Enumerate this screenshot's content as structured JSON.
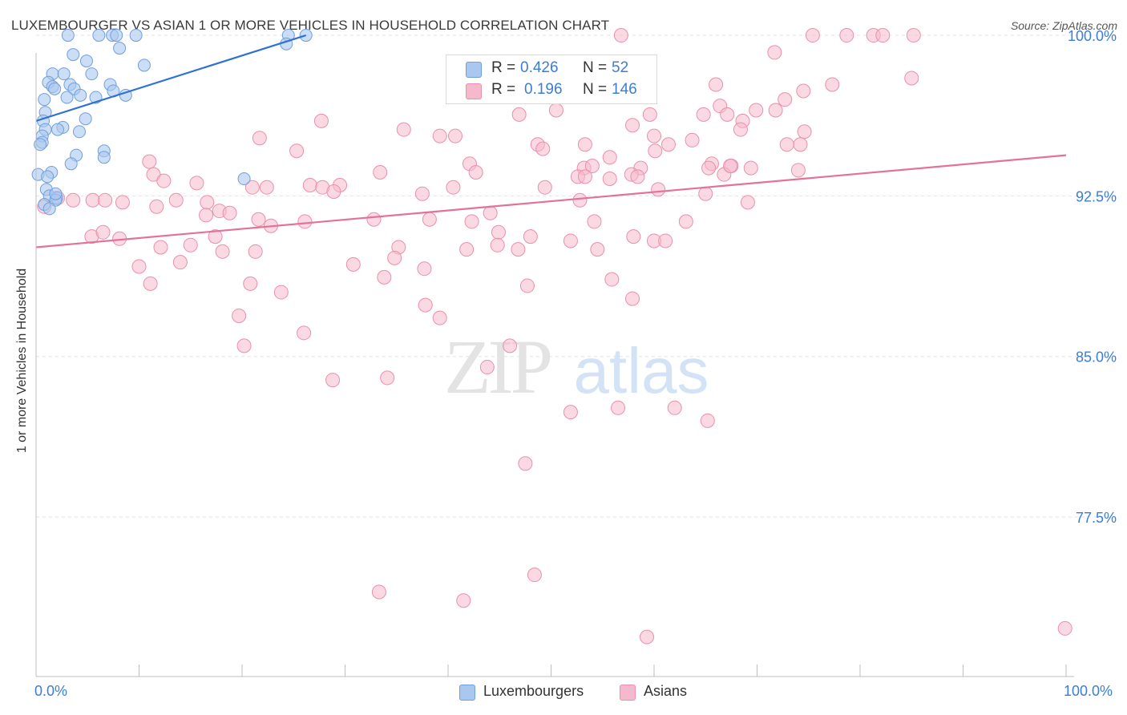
{
  "header": {
    "title": "LUXEMBOURGER VS ASIAN 1 OR MORE VEHICLES IN HOUSEHOLD CORRELATION CHART",
    "source": "Source: ZipAtlas.com"
  },
  "watermark": {
    "zip": "ZIP",
    "atlas": "atlas"
  },
  "colors": {
    "blue_fill": "#aac8ef",
    "blue_stroke": "#6f9fdc",
    "blue_line": "#2f72cf",
    "pink_fill": "#f6b9cc",
    "pink_stroke": "#ea8fad",
    "pink_line": "#e2729a",
    "axis_text": "#3b7dd8",
    "grid": "#e3e3e3"
  },
  "legend": {
    "rows": [
      {
        "r_label": "R =",
        "r_value": "0.426",
        "n_label": "N =",
        "n_value": "52"
      },
      {
        "r_label": "R =",
        "r_value": "0.196",
        "n_label": "N =",
        "n_value": "146"
      }
    ]
  },
  "bottom_legend": [
    "Luxembourgers",
    "Asians"
  ],
  "chart_data": {
    "type": "scatter",
    "title": "LUXEMBOURGER VS ASIAN 1 OR MORE VEHICLES IN HOUSEHOLD CORRELATION CHART",
    "xlabel": "",
    "ylabel": "1 or more Vehicles in Household",
    "xlim": [
      0,
      100
    ],
    "ylim": [
      70.8,
      100.9
    ],
    "x_tick_labels": [
      "0.0%",
      "100.0%"
    ],
    "y_ticks": [
      77.5,
      85.0,
      92.5,
      100.0
    ],
    "y_tick_labels": [
      "77.5%",
      "85.0%",
      "92.5%",
      "100.0%"
    ],
    "grid": true,
    "series": [
      {
        "name": "Luxembourgers",
        "R": 0.426,
        "N": 52,
        "trend": {
          "x": [
            0.0,
            26.2
          ],
          "y": [
            96.0,
            100.0
          ]
        },
        "points": [
          [
            3.1,
            100.0
          ],
          [
            6.1,
            100.0
          ],
          [
            7.4,
            100.0
          ],
          [
            7.8,
            100.0
          ],
          [
            9.7,
            100.0
          ],
          [
            24.5,
            100.0
          ],
          [
            26.2,
            100.0
          ],
          [
            8.1,
            99.4
          ],
          [
            3.6,
            99.1
          ],
          [
            4.9,
            98.8
          ],
          [
            10.5,
            98.6
          ],
          [
            1.6,
            98.2
          ],
          [
            2.7,
            98.2
          ],
          [
            5.4,
            98.2
          ],
          [
            1.2,
            97.8
          ],
          [
            3.3,
            97.7
          ],
          [
            7.2,
            97.7
          ],
          [
            1.6,
            97.6
          ],
          [
            1.8,
            97.5
          ],
          [
            3.7,
            97.5
          ],
          [
            7.5,
            97.4
          ],
          [
            4.3,
            97.2
          ],
          [
            8.7,
            97.2
          ],
          [
            3.0,
            97.1
          ],
          [
            5.8,
            97.1
          ],
          [
            0.8,
            97.0
          ],
          [
            0.9,
            96.4
          ],
          [
            4.8,
            96.1
          ],
          [
            0.7,
            96.0
          ],
          [
            2.6,
            95.7
          ],
          [
            0.9,
            95.6
          ],
          [
            2.1,
            95.6
          ],
          [
            4.2,
            95.5
          ],
          [
            0.6,
            95.3
          ],
          [
            0.6,
            95.0
          ],
          [
            0.4,
            94.9
          ],
          [
            6.6,
            94.6
          ],
          [
            3.9,
            94.4
          ],
          [
            6.6,
            94.3
          ],
          [
            3.4,
            94.0
          ],
          [
            1.5,
            93.6
          ],
          [
            0.2,
            93.5
          ],
          [
            1.1,
            93.4
          ],
          [
            20.2,
            93.3
          ],
          [
            1.0,
            92.8
          ],
          [
            1.3,
            92.5
          ],
          [
            2.0,
            92.4
          ],
          [
            1.9,
            92.3
          ],
          [
            0.8,
            92.1
          ],
          [
            1.3,
            91.9
          ],
          [
            1.9,
            92.6
          ],
          [
            24.3,
            99.6
          ]
        ]
      },
      {
        "name": "Asians",
        "R": 0.196,
        "N": 146,
        "trend": {
          "x": [
            0.0,
            100.0
          ],
          "y": [
            90.1,
            94.4
          ]
        },
        "points": [
          [
            56.8,
            100.0
          ],
          [
            75.4,
            100.0
          ],
          [
            78.7,
            100.0
          ],
          [
            81.3,
            100.0
          ],
          [
            82.2,
            100.0
          ],
          [
            85.2,
            100.0
          ],
          [
            71.7,
            99.2
          ],
          [
            85.0,
            98.0
          ],
          [
            77.3,
            97.7
          ],
          [
            66.0,
            97.7
          ],
          [
            74.5,
            97.4
          ],
          [
            72.7,
            97.0
          ],
          [
            66.4,
            96.7
          ],
          [
            69.9,
            96.5
          ],
          [
            64.8,
            96.3
          ],
          [
            71.8,
            96.5
          ],
          [
            50.5,
            96.5
          ],
          [
            59.6,
            96.3
          ],
          [
            46.9,
            96.3
          ],
          [
            67.1,
            96.3
          ],
          [
            68.6,
            96.0
          ],
          [
            27.7,
            96.0
          ],
          [
            57.9,
            95.8
          ],
          [
            35.7,
            95.6
          ],
          [
            68.4,
            95.6
          ],
          [
            60.0,
            95.3
          ],
          [
            74.6,
            95.5
          ],
          [
            39.2,
            95.3
          ],
          [
            40.7,
            95.3
          ],
          [
            21.7,
            95.2
          ],
          [
            63.7,
            95.1
          ],
          [
            48.7,
            94.9
          ],
          [
            53.3,
            94.9
          ],
          [
            61.4,
            94.9
          ],
          [
            74.2,
            94.9
          ],
          [
            72.9,
            94.9
          ],
          [
            49.2,
            94.7
          ],
          [
            25.3,
            94.6
          ],
          [
            60.1,
            94.6
          ],
          [
            55.7,
            94.3
          ],
          [
            42.1,
            94.0
          ],
          [
            65.6,
            94.0
          ],
          [
            65.3,
            93.8
          ],
          [
            53.2,
            93.8
          ],
          [
            11.0,
            94.1
          ],
          [
            54.0,
            93.9
          ],
          [
            67.5,
            93.9
          ],
          [
            58.7,
            93.8
          ],
          [
            69.4,
            93.8
          ],
          [
            74.0,
            93.7
          ],
          [
            33.4,
            93.6
          ],
          [
            42.7,
            93.6
          ],
          [
            52.6,
            93.4
          ],
          [
            53.3,
            93.4
          ],
          [
            55.7,
            93.3
          ],
          [
            57.8,
            93.5
          ],
          [
            58.4,
            93.4
          ],
          [
            66.8,
            93.5
          ],
          [
            67.4,
            93.9
          ],
          [
            11.4,
            93.5
          ],
          [
            12.4,
            93.2
          ],
          [
            15.6,
            93.1
          ],
          [
            26.6,
            93.0
          ],
          [
            29.5,
            93.0
          ],
          [
            40.5,
            92.9
          ],
          [
            49.4,
            92.9
          ],
          [
            60.4,
            92.8
          ],
          [
            21.0,
            92.9
          ],
          [
            22.4,
            92.9
          ],
          [
            27.8,
            92.9
          ],
          [
            28.9,
            92.7
          ],
          [
            37.5,
            92.6
          ],
          [
            52.8,
            92.3
          ],
          [
            65.0,
            92.6
          ],
          [
            69.1,
            92.2
          ],
          [
            16.6,
            92.2
          ],
          [
            13.6,
            92.3
          ],
          [
            2.1,
            92.4
          ],
          [
            3.6,
            92.3
          ],
          [
            5.5,
            92.3
          ],
          [
            0.8,
            92.0
          ],
          [
            6.7,
            92.3
          ],
          [
            8.4,
            92.2
          ],
          [
            11.7,
            92.0
          ],
          [
            17.8,
            91.8
          ],
          [
            16.5,
            91.6
          ],
          [
            18.8,
            91.7
          ],
          [
            21.6,
            91.4
          ],
          [
            22.8,
            91.1
          ],
          [
            26.1,
            91.3
          ],
          [
            38.2,
            91.4
          ],
          [
            44.1,
            91.7
          ],
          [
            42.3,
            91.3
          ],
          [
            32.8,
            91.4
          ],
          [
            44.9,
            90.8
          ],
          [
            48.0,
            90.6
          ],
          [
            54.2,
            91.3
          ],
          [
            58.0,
            90.6
          ],
          [
            44.8,
            90.2
          ],
          [
            63.1,
            91.3
          ],
          [
            5.4,
            90.6
          ],
          [
            6.5,
            90.8
          ],
          [
            8.1,
            90.5
          ],
          [
            12.1,
            90.1
          ],
          [
            15.0,
            90.2
          ],
          [
            35.2,
            90.1
          ],
          [
            41.8,
            90.0
          ],
          [
            46.8,
            90.0
          ],
          [
            51.9,
            90.4
          ],
          [
            54.5,
            90.0
          ],
          [
            60.0,
            90.4
          ],
          [
            61.1,
            90.4
          ],
          [
            17.4,
            90.6
          ],
          [
            10.0,
            89.2
          ],
          [
            14.0,
            89.4
          ],
          [
            18.1,
            89.9
          ],
          [
            21.3,
            89.9
          ],
          [
            30.8,
            89.3
          ],
          [
            33.8,
            88.7
          ],
          [
            34.8,
            89.6
          ],
          [
            37.7,
            89.1
          ],
          [
            47.7,
            88.3
          ],
          [
            55.9,
            88.6
          ],
          [
            20.8,
            88.4
          ],
          [
            23.8,
            88.0
          ],
          [
            57.9,
            87.7
          ],
          [
            11.1,
            88.4
          ],
          [
            19.7,
            86.9
          ],
          [
            26.0,
            86.1
          ],
          [
            37.8,
            87.4
          ],
          [
            39.2,
            86.8
          ],
          [
            20.2,
            85.5
          ],
          [
            28.8,
            83.9
          ],
          [
            34.1,
            84.0
          ],
          [
            43.8,
            84.5
          ],
          [
            46.0,
            85.5
          ],
          [
            51.9,
            82.4
          ],
          [
            56.5,
            82.6
          ],
          [
            62.0,
            82.6
          ],
          [
            65.2,
            82.0
          ],
          [
            47.5,
            80.0
          ],
          [
            48.4,
            74.8
          ],
          [
            33.3,
            74.0
          ],
          [
            41.5,
            73.6
          ],
          [
            59.3,
            71.9
          ],
          [
            99.9,
            72.3
          ]
        ]
      }
    ]
  }
}
